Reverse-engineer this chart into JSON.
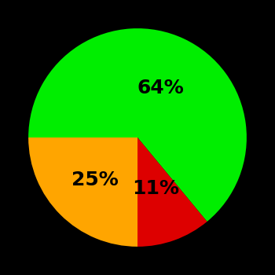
{
  "slices": [
    64,
    11,
    25
  ],
  "colors": [
    "#00ee00",
    "#dd0000",
    "#ffa500"
  ],
  "labels": [
    "64%",
    "11%",
    "25%"
  ],
  "background_color": "#000000",
  "startangle": 180,
  "label_fontsize": 18,
  "label_fontweight": "bold",
  "label_color": "#000000",
  "label_radii": [
    0.5,
    0.5,
    0.55
  ]
}
